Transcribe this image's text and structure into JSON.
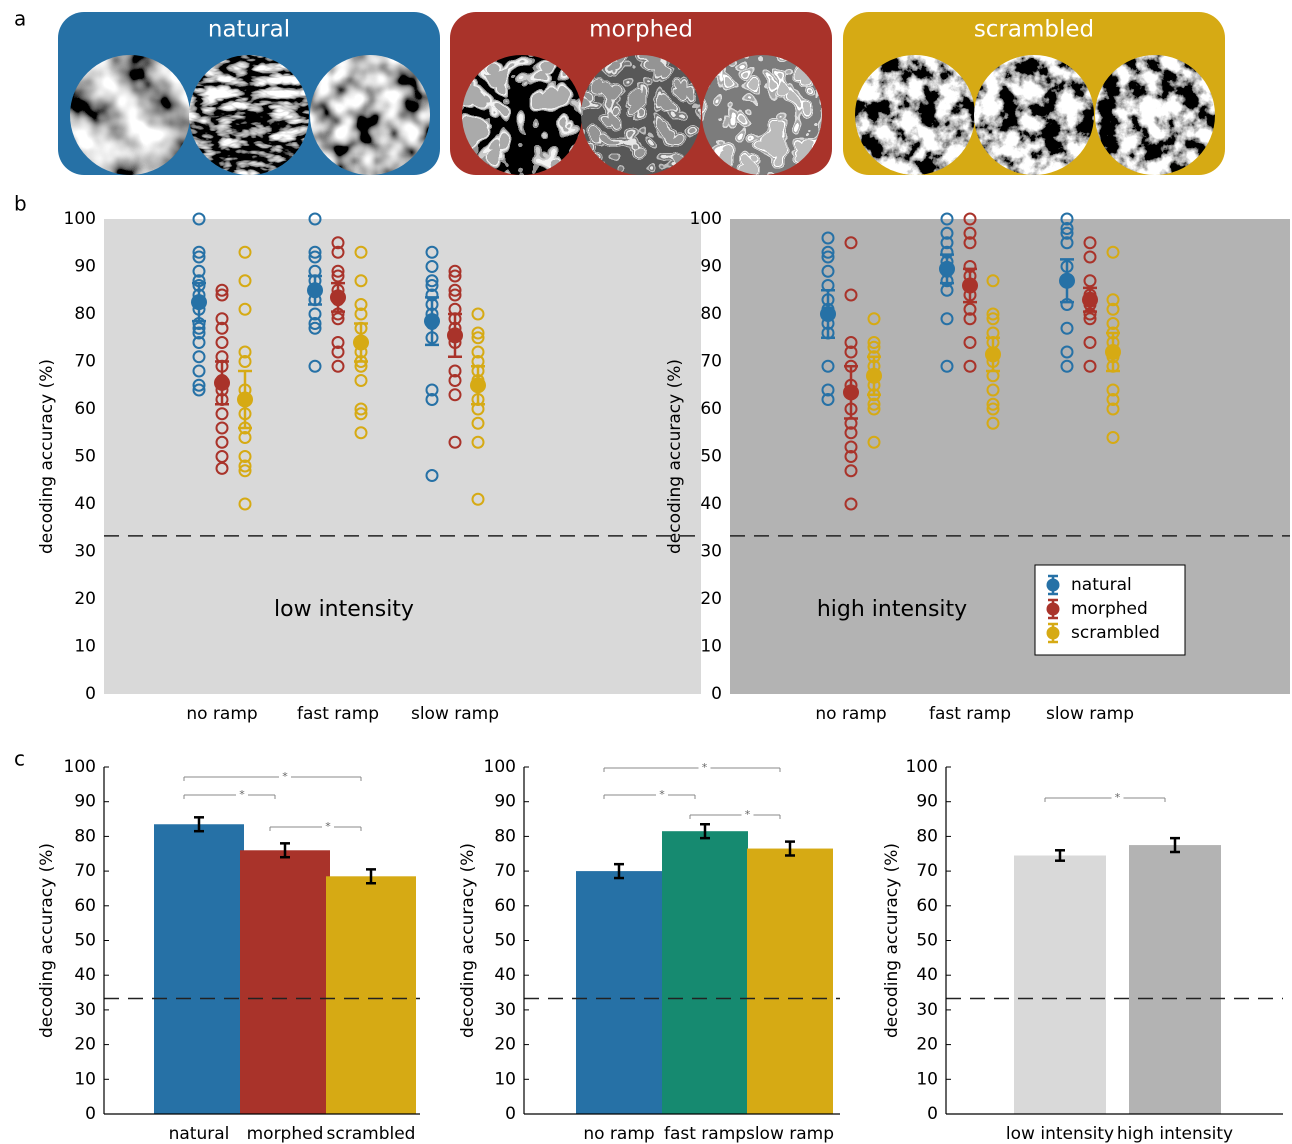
{
  "panel_labels": [
    "a",
    "b",
    "c"
  ],
  "stimuli": [
    {
      "label": "natural",
      "color": "#2671a6"
    },
    {
      "label": "morphed",
      "color": "#a9332a"
    },
    {
      "label": "scrambled",
      "color": "#d6aa14"
    }
  ],
  "chart_data": [
    {
      "type": "strip",
      "annotation": "low intensity",
      "background": "#d9d9d9",
      "ylabel": "decoding accuracy (%)",
      "categories": [
        "no ramp",
        "fast ramp",
        "slow ramp"
      ],
      "ylim": [
        0,
        100
      ],
      "yticks": [
        0,
        10,
        20,
        30,
        40,
        50,
        60,
        70,
        80,
        90,
        100
      ],
      "chance_level": 33.3,
      "legend": null,
      "series": [
        {
          "name": "natural",
          "color": "#2671a6",
          "values": [
            82.5,
            85,
            78.5
          ],
          "errors": [
            4,
            3,
            5
          ],
          "points": [
            [
              100,
              93,
              92,
              89,
              87,
              86,
              84,
              81,
              78,
              77,
              76,
              74,
              71,
              68,
              65,
              64
            ],
            [
              100,
              93,
              92,
              89,
              87,
              85,
              83,
              80,
              78,
              77,
              69
            ],
            [
              93,
              90,
              87,
              86,
              84,
              82,
              80,
              78,
              75,
              64,
              62,
              46
            ]
          ]
        },
        {
          "name": "morphed",
          "color": "#a9332a",
          "values": [
            65.5,
            83.5,
            75.5
          ],
          "errors": [
            4.5,
            3,
            4.5
          ],
          "points": [
            [
              85,
              84,
              79,
              77,
              74,
              71,
              69,
              66,
              64,
              62,
              59,
              56,
              53,
              50,
              47.5
            ],
            [
              95,
              93,
              89,
              88,
              85,
              83,
              80,
              79,
              74,
              72,
              69
            ],
            [
              89,
              88,
              85,
              84,
              81,
              79,
              77,
              74,
              68,
              66,
              63,
              53
            ]
          ]
        },
        {
          "name": "scrambled",
          "color": "#d6aa14",
          "values": [
            62,
            74,
            65
          ],
          "errors": [
            6,
            4,
            4
          ],
          "points": [
            [
              93,
              87,
              81,
              72,
              70,
              64,
              62,
              59,
              56,
              54,
              50,
              48,
              47,
              40
            ],
            [
              93,
              87,
              82,
              80,
              77,
              74,
              72,
              70,
              69,
              66,
              60,
              59,
              55
            ],
            [
              80,
              76,
              75,
              72,
              70,
              68,
              66,
              65,
              62,
              60,
              57,
              53,
              41
            ]
          ]
        }
      ]
    },
    {
      "type": "strip",
      "annotation": "high intensity",
      "background": "#b3b3b3",
      "ylabel": "decoding accuracy (%)",
      "categories": [
        "no ramp",
        "fast ramp",
        "slow ramp"
      ],
      "ylim": [
        0,
        100
      ],
      "yticks": [
        0,
        10,
        20,
        30,
        40,
        50,
        60,
        70,
        80,
        90,
        100
      ],
      "chance_level": 33.3,
      "legend": "lower right",
      "series": [
        {
          "name": "natural",
          "color": "#2671a6",
          "values": [
            80,
            89.5,
            87
          ],
          "errors": [
            5,
            3,
            4.5
          ],
          "points": [
            [
              96,
              93,
              92,
              89,
              86,
              83,
              81,
              78,
              76,
              69,
              64,
              62
            ],
            [
              100,
              97,
              95,
              93,
              91,
              89,
              87,
              85,
              79,
              69
            ],
            [
              100,
              98,
              97,
              95,
              90,
              87,
              82,
              77,
              72,
              69
            ]
          ]
        },
        {
          "name": "morphed",
          "color": "#a9332a",
          "values": [
            63.5,
            86,
            83
          ],
          "errors": [
            5.5,
            3.5,
            2.5
          ],
          "points": [
            [
              95,
              84,
              74,
              72,
              69,
              65,
              60,
              57,
              55,
              52,
              50,
              47,
              40
            ],
            [
              100,
              97,
              95,
              90,
              88,
              86,
              84,
              81,
              79,
              74,
              69
            ],
            [
              95,
              92,
              87,
              84,
              82,
              80,
              79,
              74,
              69
            ]
          ]
        },
        {
          "name": "scrambled",
          "color": "#d6aa14",
          "values": [
            67,
            71.5,
            72
          ],
          "errors": [
            4,
            3.5,
            4
          ],
          "points": [
            [
              79,
              74,
              73,
              71,
              69,
              67,
              65,
              63,
              61,
              60,
              53
            ],
            [
              87,
              80,
              79,
              76,
              74,
              70,
              67,
              64,
              61,
              60,
              57
            ],
            [
              93,
              83,
              81,
              78,
              76,
              74,
              71,
              69,
              64,
              62,
              60,
              54
            ]
          ]
        }
      ]
    },
    {
      "type": "bar",
      "ylabel": "decoding accuracy (%)",
      "categories": [
        "natural",
        "morphed",
        "scrambled"
      ],
      "values": [
        83.5,
        76,
        68.5
      ],
      "errors": [
        2,
        2,
        2
      ],
      "colors": [
        "#2671a6",
        "#a9332a",
        "#d6aa14"
      ],
      "ylim": [
        0,
        100
      ],
      "yticks": [
        0,
        10,
        20,
        30,
        40,
        50,
        60,
        70,
        80,
        90,
        100
      ],
      "chance_level": 33.3,
      "significance": [
        {
          "from": 0,
          "to": 2,
          "label": "*"
        },
        {
          "from": 0,
          "to": 1,
          "label": "*"
        },
        {
          "from": 1,
          "to": 2,
          "label": "*"
        }
      ]
    },
    {
      "type": "bar",
      "ylabel": "decoding accuracy (%)",
      "categories": [
        "no ramp",
        "fast ramp",
        "slow ramp"
      ],
      "values": [
        70,
        81.5,
        76.5
      ],
      "errors": [
        2,
        2,
        2
      ],
      "colors": [
        "#2671a6",
        "#168a70",
        "#d6aa14"
      ],
      "ylim": [
        0,
        100
      ],
      "yticks": [
        0,
        10,
        20,
        30,
        40,
        50,
        60,
        70,
        80,
        90,
        100
      ],
      "chance_level": 33.3,
      "significance": [
        {
          "from": 0,
          "to": 2,
          "label": "*"
        },
        {
          "from": 0,
          "to": 1,
          "label": "*"
        },
        {
          "from": 1,
          "to": 2,
          "label": "*"
        }
      ]
    },
    {
      "type": "bar",
      "ylabel": "decoding accuracy (%)",
      "categories": [
        "low intensity",
        "high intensity"
      ],
      "values": [
        74.5,
        77.5
      ],
      "errors": [
        1.5,
        2
      ],
      "colors": [
        "#d9d9d9",
        "#b3b3b3"
      ],
      "ylim": [
        0,
        100
      ],
      "yticks": [
        0,
        10,
        20,
        30,
        40,
        50,
        60,
        70,
        80,
        90,
        100
      ],
      "chance_level": 33.3,
      "significance": [
        {
          "from": 0,
          "to": 1,
          "label": "*"
        }
      ]
    }
  ]
}
